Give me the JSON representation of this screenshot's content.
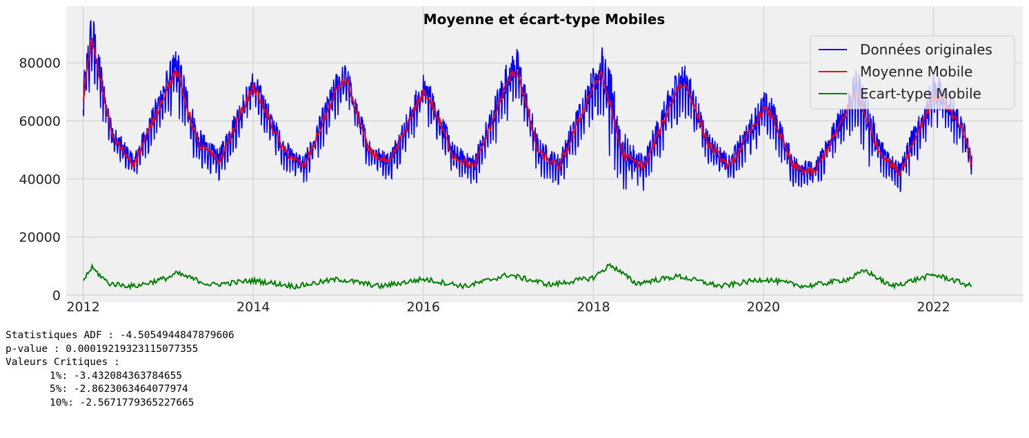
{
  "chart_data": {
    "type": "line",
    "title": "Moyenne et écart-type Mobiles",
    "xlabel": "",
    "ylabel": "",
    "xlim": [
      2011.8,
      2023.05
    ],
    "ylim": [
      -2500,
      99500
    ],
    "x_ticks": [
      "2012",
      "2014",
      "2016",
      "2018",
      "2020",
      "2022"
    ],
    "y_ticks": [
      "0",
      "20000",
      "40000",
      "60000",
      "80000"
    ],
    "grid": true,
    "legend_position": "top-right",
    "colors": {
      "original": "#0000ff",
      "rolling_mean": "#ff0000",
      "rolling_std": "#008000",
      "background": "#f0f0f0",
      "grid": "#cbcbcb"
    },
    "series": [
      {
        "name": "Données originales",
        "color": "#0000ff",
        "x_range": [
          2012.0,
          2022.45
        ],
        "peak_values": [
          94000,
          85000,
          76000,
          84000,
          79000,
          87000,
          90000,
          80000,
          71000,
          80000,
          80000
        ],
        "trough_values": [
          37000,
          36000,
          36000,
          36000,
          37000,
          37000,
          37000,
          36000,
          36000,
          36000,
          38000
        ]
      },
      {
        "name": "Moyenne Mobile",
        "color": "#ff0000",
        "x": [
          2012.0,
          2012.1,
          2012.35,
          2012.6,
          2013.0,
          2013.1,
          2013.35,
          2013.6,
          2014.0,
          2014.1,
          2014.35,
          2014.6,
          2015.0,
          2015.1,
          2015.35,
          2015.6,
          2016.0,
          2016.1,
          2016.35,
          2016.6,
          2017.0,
          2017.1,
          2017.35,
          2017.6,
          2018.0,
          2018.1,
          2018.35,
          2018.6,
          2019.0,
          2019.1,
          2019.35,
          2019.6,
          2020.0,
          2020.1,
          2020.35,
          2020.6,
          2021.0,
          2021.1,
          2021.35,
          2021.6,
          2022.0,
          2022.1,
          2022.35,
          2022.45
        ],
        "y": [
          68000,
          88000,
          54000,
          45000,
          72000,
          77000,
          52000,
          46000,
          72000,
          66000,
          50000,
          44000,
          72000,
          74000,
          50000,
          45000,
          70000,
          66000,
          48000,
          44000,
          74000,
          78000,
          49000,
          44000,
          72000,
          76000,
          48000,
          44000,
          72000,
          72000,
          52000,
          44000,
          64000,
          62000,
          44000,
          42000,
          64000,
          70000,
          50000,
          42000,
          68000,
          68000,
          56000,
          45000
        ]
      },
      {
        "name": "Ecart-type Mobile",
        "color": "#008000",
        "x": [
          2012.0,
          2012.1,
          2012.3,
          2012.6,
          2013.0,
          2013.1,
          2013.5,
          2014.0,
          2014.5,
          2015.0,
          2015.5,
          2016.0,
          2016.5,
          2017.0,
          2017.5,
          2018.0,
          2018.2,
          2018.5,
          2019.0,
          2019.5,
          2020.0,
          2020.5,
          2021.0,
          2021.2,
          2021.5,
          2022.0,
          2022.2,
          2022.45
        ],
        "y": [
          5000,
          9500,
          4000,
          3000,
          6000,
          7500,
          3500,
          5000,
          3000,
          5500,
          3000,
          5500,
          3000,
          7000,
          3500,
          6000,
          10500,
          4000,
          6500,
          3000,
          5500,
          3000,
          5500,
          8500,
          3000,
          7000,
          5500,
          3000
        ]
      }
    ]
  },
  "stats": {
    "adf": "Statistiques ADF : -4.5054944847879606",
    "pvalue": "p-value : 0.00019219323115077355",
    "critical_header": "Valeurs Critiques :",
    "crit_1": "1%: -3.432084363784655",
    "crit_5": "5%: -2.8623063464077974",
    "crit_10": "10%: -2.5671779365227665"
  }
}
